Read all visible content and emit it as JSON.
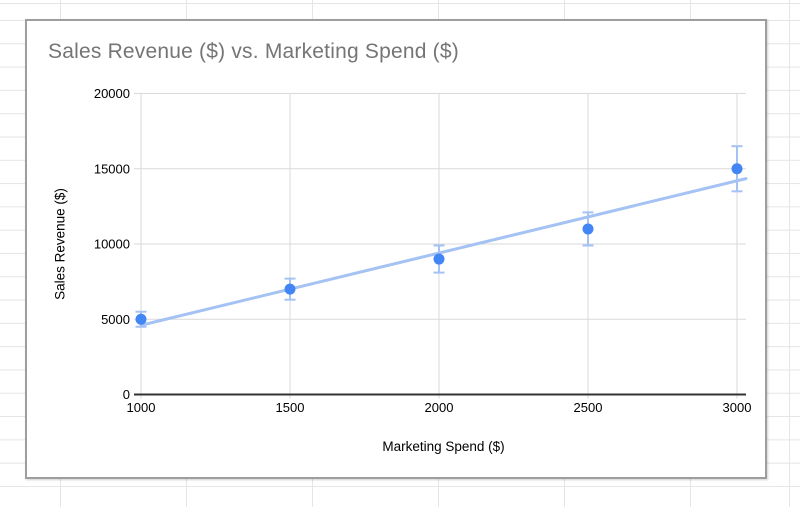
{
  "chart_data": {
    "type": "scatter",
    "title": "Sales Revenue ($) vs. Marketing Spend ($)",
    "xlabel": "Marketing Spend ($)",
    "ylabel": "Sales Revenue ($)",
    "x": [
      1000,
      1500,
      2000,
      2500,
      3000
    ],
    "y": [
      5000,
      7000,
      9000,
      11000,
      15000
    ],
    "error_y": [
      500,
      700,
      900,
      1100,
      1500
    ],
    "error_y_percent": 10,
    "trendline": {
      "type": "linear",
      "slope": 4.8,
      "intercept": -200
    },
    "xlim": [
      1000,
      3000
    ],
    "ylim": [
      0,
      20000
    ],
    "x_ticks": [
      "1000",
      "1500",
      "2000",
      "2500",
      "3000"
    ],
    "y_ticks": [
      "0",
      "5000",
      "10000",
      "15000",
      "20000"
    ],
    "grid": true,
    "legend": "none",
    "colors": {
      "point": "#4285f4",
      "trendline": "#a4c2f4",
      "error_bar": "#a4c2f4",
      "gridline": "#d9d9d9",
      "axis_line": "#333333",
      "title": "#757575",
      "tick_label": "#000000"
    }
  }
}
